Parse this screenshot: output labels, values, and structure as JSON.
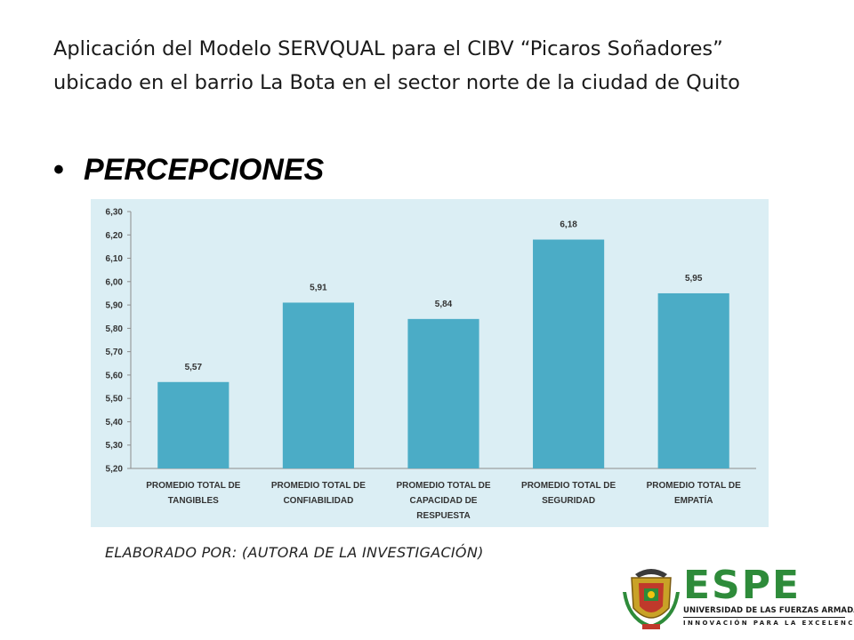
{
  "slide": {
    "title_line1": "Aplicación del Modelo SERVQUAL para el CIBV “Picaros Soñadores”",
    "title_line2": "ubicado en el barrio La Bota en el sector norte de la ciudad de Quito",
    "bullet_char": "•",
    "bullet_text": "PERCEPCIONES",
    "credit": "ELABORADO POR: (AUTORA DE LA INVESTIGACIÓN)"
  },
  "logo": {
    "wordmark": "ESPE",
    "subtitle": "UNIVERSIDAD DE LAS FUERZAS ARMADAS",
    "tagline": "INNOVACIÓN PARA LA EXCELENCIA",
    "icon": "espe-crest-icon",
    "brand_color": "#2e8b3a"
  },
  "chart_data": {
    "type": "bar",
    "categories": [
      [
        "PROMEDIO TOTAL DE",
        "TANGIBLES"
      ],
      [
        "PROMEDIO TOTAL DE",
        "CONFIABILIDAD"
      ],
      [
        "PROMEDIO TOTAL DE",
        "CAPACIDAD DE",
        "RESPUESTA"
      ],
      [
        "PROMEDIO TOTAL DE",
        "SEGURIDAD"
      ],
      [
        "PROMEDIO TOTAL DE",
        "EMPATÍA"
      ]
    ],
    "values": [
      5.57,
      5.91,
      5.84,
      6.18,
      5.95
    ],
    "value_labels": [
      "5,57",
      "5,91",
      "5,84",
      "6,18",
      "5,95"
    ],
    "ylim": [
      5.2,
      6.3
    ],
    "yticks": [
      "5,20",
      "5,30",
      "5,40",
      "5,50",
      "5,60",
      "5,70",
      "5,80",
      "5,90",
      "6,00",
      "6,10",
      "6,20",
      "6,30"
    ],
    "ytick_values": [
      5.2,
      5.3,
      5.4,
      5.5,
      5.6,
      5.7,
      5.8,
      5.9,
      6.0,
      6.1,
      6.2,
      6.3
    ],
    "bar_color": "#4bacc6",
    "background_color": "#dbeef4",
    "grid": false,
    "legend": "none"
  }
}
